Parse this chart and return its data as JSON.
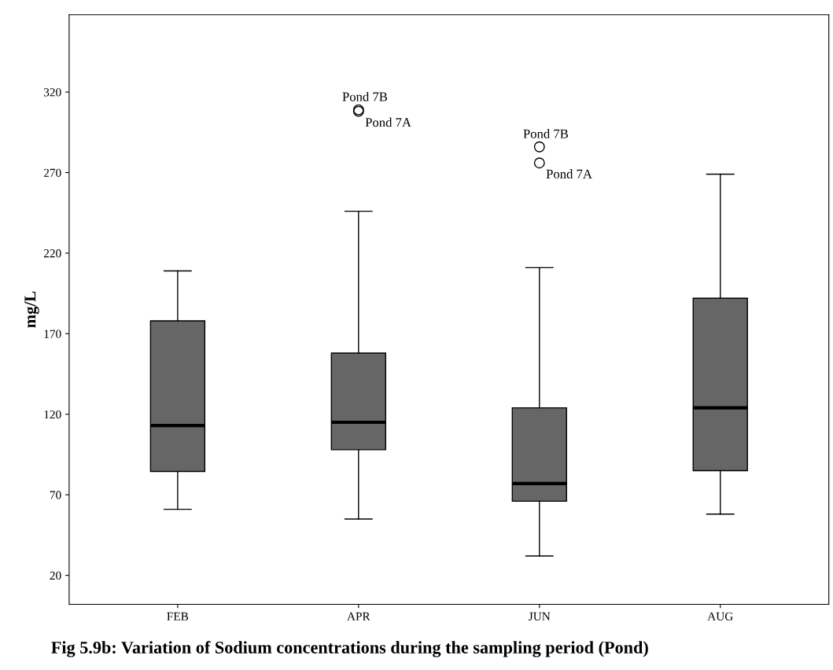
{
  "chart_data": {
    "type": "box",
    "title": "Fig 5.9b: Variation of Sodium concentrations during the sampling period (Pond)",
    "ylabel": "mg/L",
    "categories": [
      "FEB",
      "APR",
      "JUN",
      "AUG"
    ],
    "color": "#666666",
    "boxes": [
      {
        "low": 61,
        "q1": 84.5,
        "median": 113,
        "q3": 178,
        "high": 209
      },
      {
        "low": 55,
        "q1": 98,
        "median": 115,
        "q3": 158,
        "high": 246,
        "outliers": [
          309,
          308
        ]
      },
      {
        "low": 32,
        "q1": 66,
        "median": 77,
        "q3": 124,
        "high": 211,
        "outliers": [
          286,
          276
        ]
      },
      {
        "low": 58,
        "q1": 85,
        "median": 124,
        "q3": 192,
        "high": 269
      }
    ],
    "ylim": [
      2,
      368
    ],
    "yticks": [
      20,
      70,
      120,
      170,
      220,
      270,
      320
    ],
    "grid": false,
    "marker": "circle",
    "annotations": [
      "Pond 7B",
      "Pond 7A",
      "Pond 7B",
      "Pond 7A"
    ]
  }
}
